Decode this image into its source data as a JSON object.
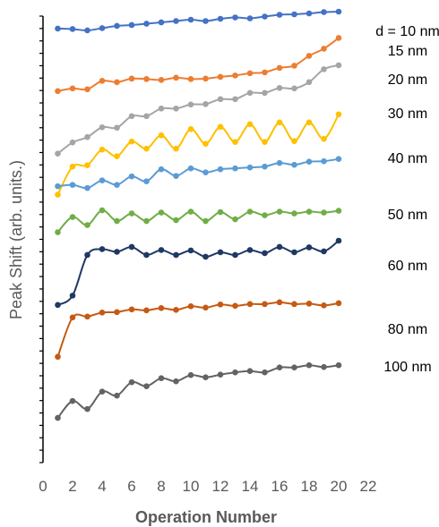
{
  "chart_data": {
    "type": "line",
    "title": "",
    "xlabel": "Operation Number",
    "ylabel": "Peak Shift (arb. units.)",
    "xlim": [
      0,
      22
    ],
    "x_ticks": [
      0,
      2,
      4,
      6,
      8,
      10,
      12,
      14,
      16,
      18,
      20,
      22
    ],
    "ylim": [
      0,
      100
    ],
    "y_tick_labels_shown": false,
    "grid": false,
    "legend": "none",
    "x": [
      1,
      2,
      3,
      4,
      5,
      6,
      7,
      8,
      9,
      10,
      11,
      12,
      13,
      14,
      15,
      16,
      17,
      18,
      19,
      20
    ],
    "series": [
      {
        "name": "d = 10 nm",
        "color": "#4472C4",
        "values": [
          97.2,
          97.1,
          96.8,
          97.3,
          97.8,
          98.0,
          98.3,
          98.6,
          98.9,
          99.2,
          98.9,
          99.4,
          99.7,
          99.5,
          99.9,
          100.3,
          100.4,
          100.6,
          100.9,
          101.0
        ]
      },
      {
        "name": "15 nm",
        "color": "#ED7D31",
        "values": [
          83.2,
          83.8,
          83.6,
          85.5,
          85.2,
          86.0,
          85.9,
          85.7,
          86.2,
          85.9,
          86.0,
          86.4,
          86.7,
          87.2,
          87.4,
          88.4,
          88.9,
          91.1,
          92.7,
          95.1
        ]
      },
      {
        "name": "20 nm",
        "color": "#A5A5A5",
        "values": [
          69.2,
          71.7,
          72.9,
          75.1,
          75.0,
          77.6,
          77.6,
          79.3,
          79.3,
          80.2,
          80.3,
          81.4,
          81.4,
          82.8,
          82.8,
          83.9,
          83.8,
          85.2,
          88.1,
          89.0
        ]
      },
      {
        "name": "30 nm",
        "color": "#FFC000",
        "values": [
          60.0,
          66.3,
          66.6,
          70.1,
          68.6,
          71.9,
          70.3,
          73.3,
          70.3,
          74.7,
          71.4,
          75.2,
          71.8,
          75.8,
          71.8,
          76.2,
          72.0,
          76.2,
          72.5,
          78.0
        ]
      },
      {
        "name": "40 nm",
        "color": "#5B9BD5",
        "values": [
          61.9,
          62.2,
          61.5,
          63.2,
          62.2,
          64.1,
          63.0,
          65.7,
          64.2,
          65.9,
          65.0,
          65.7,
          65.9,
          66.1,
          66.3,
          67.1,
          66.7,
          67.4,
          67.5,
          68.0
        ]
      },
      {
        "name": "50 nm",
        "color": "#70AD47",
        "values": [
          51.6,
          55.0,
          53.2,
          56.5,
          54.1,
          55.8,
          54.1,
          56.0,
          54.3,
          56.2,
          54.1,
          56.1,
          54.5,
          56.2,
          55.4,
          56.2,
          55.8,
          56.2,
          56.0,
          56.4
        ]
      },
      {
        "name": "60 nm",
        "color": "#1F3864",
        "values": [
          35.3,
          37.4,
          46.5,
          47.8,
          47.2,
          48.3,
          46.5,
          47.6,
          46.5,
          47.5,
          46.1,
          47.1,
          46.5,
          47.6,
          46.9,
          48.3,
          47.1,
          48.2,
          47.3,
          49.7
        ]
      },
      {
        "name": "80 nm",
        "color": "#C55A11",
        "values": [
          23.7,
          32.5,
          32.7,
          33.6,
          33.7,
          34.3,
          34.1,
          34.6,
          34.2,
          35.0,
          34.7,
          35.4,
          35.1,
          35.5,
          35.5,
          35.9,
          35.5,
          35.6,
          35.2,
          35.7
        ]
      },
      {
        "name": "100 nm",
        "color": "#636363",
        "values": [
          10.0,
          13.8,
          12.0,
          15.9,
          15.0,
          18.0,
          17.1,
          18.9,
          18.2,
          19.6,
          19.1,
          19.7,
          20.2,
          20.5,
          20.2,
          21.3,
          21.3,
          21.8,
          21.4,
          21.8
        ]
      }
    ]
  }
}
